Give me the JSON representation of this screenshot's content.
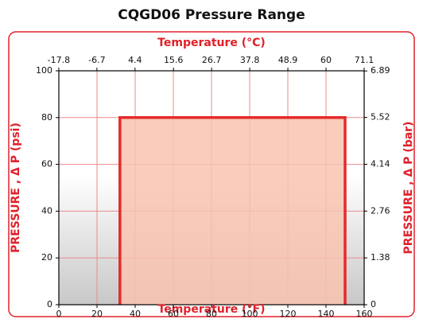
{
  "chart_data": {
    "type": "area",
    "title": "CQGD06 Pressure Range",
    "x_label": "Temperature (°F)",
    "x2_label": "Temperature (°C)",
    "y_label": "PRESSURE , Δ P (psi)",
    "y2_label": "PRESSURE , Δ P (bar)",
    "x": [
      32,
      32,
      150,
      150
    ],
    "values": [
      0,
      80,
      80,
      0
    ],
    "color": "#e32b2b",
    "fill_color": "#f8c3b0",
    "xlim": [
      0,
      160
    ],
    "xticks": [
      0,
      20,
      40,
      60,
      80,
      100,
      120,
      140,
      160
    ],
    "x2lim": [
      -17.78,
      71.11
    ],
    "x2ticks": [
      -17.8,
      -6.7,
      4.4,
      15.6,
      26.7,
      37.8,
      48.9,
      60.0,
      71.1
    ],
    "ylim": [
      0,
      100
    ],
    "yticks": [
      0,
      20,
      40,
      60,
      80,
      100
    ],
    "y2lim": [
      0,
      6.895
    ],
    "y2ticks": [
      0,
      1.38,
      2.76,
      4.14,
      5.52,
      6.89
    ],
    "grid": true
  }
}
